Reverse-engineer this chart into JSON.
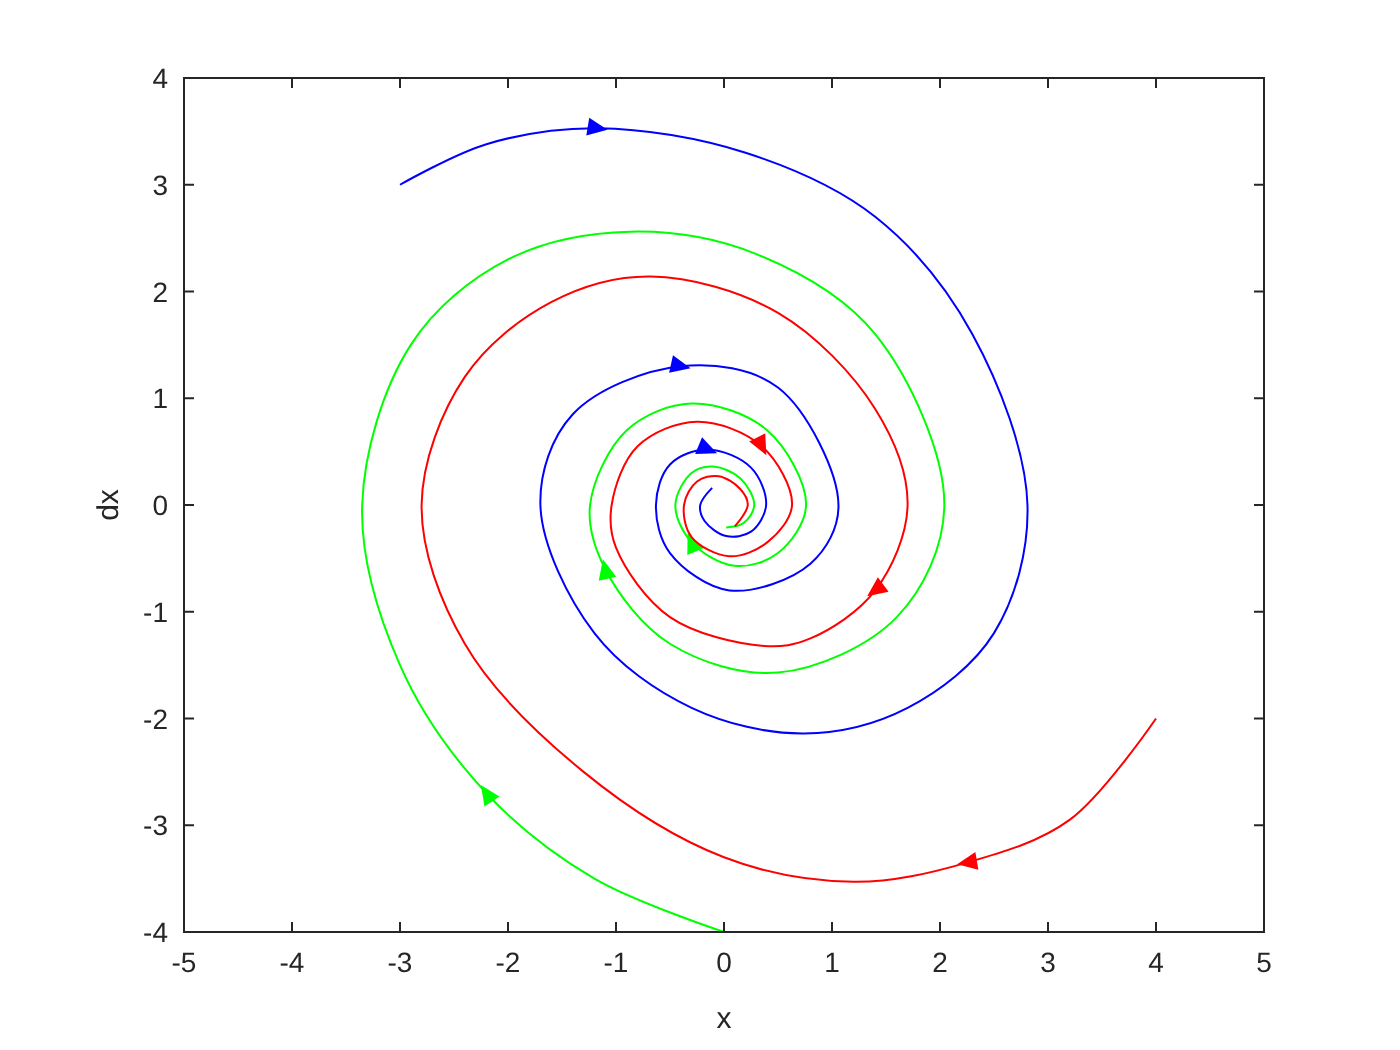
{
  "chart_data": {
    "type": "line",
    "xlabel": "x",
    "ylabel": "dx",
    "xlim": [
      -5,
      5
    ],
    "ylim": [
      -4,
      4
    ],
    "xticks": [
      -5,
      -4,
      -3,
      -2,
      -1,
      0,
      1,
      2,
      3,
      4,
      5
    ],
    "yticks": [
      -4,
      -3,
      -2,
      -1,
      0,
      1,
      2,
      3,
      4
    ],
    "grid": false,
    "series": [
      {
        "color": "#0000ff",
        "x": [
          -3,
          -2.2,
          -1.17,
          0.2,
          1.4,
          2.3,
          2.81,
          2.5,
          1.7,
          0.74,
          -0.3,
          -1.2,
          -1.7,
          -1.4,
          -0.4,
          0.5,
          1.06,
          0.8,
          0.05,
          -0.5,
          -0.63,
          -0.5,
          -0.15,
          0.25,
          0.39,
          0.25,
          0.02,
          -0.18,
          -0.22,
          -0.11
        ],
        "values": [
          3,
          3.38,
          3.53,
          3.3,
          2.7,
          1.6,
          0,
          -1.2,
          -1.9,
          -2.14,
          -1.9,
          -1.2,
          0,
          0.85,
          1.3,
          1.1,
          0,
          -0.55,
          -0.8,
          -0.45,
          0,
          0.38,
          0.52,
          0.35,
          0,
          -0.25,
          -0.29,
          -0.15,
          0,
          0.16
        ]
      },
      {
        "color": "#00ff00",
        "x": [
          0,
          -1.2,
          -2.2,
          -3,
          -3.35,
          -2.9,
          -2,
          -0.87,
          0.3,
          1.4,
          2.04,
          1.6,
          0.5,
          -0.5,
          -1.1,
          -1.24,
          -0.9,
          -0.3,
          0.4,
          0.76,
          0.5,
          0.1,
          -0.3,
          -0.45,
          -0.3,
          -0.1,
          0.15,
          0.28,
          0.18,
          0.02
        ],
        "values": [
          -4,
          -3.5,
          -2.7,
          -1.5,
          0,
          1.5,
          2.3,
          2.56,
          2.35,
          1.6,
          0,
          -1.05,
          -1.57,
          -1.3,
          -0.6,
          0,
          0.7,
          0.95,
          0.7,
          0,
          -0.45,
          -0.57,
          -0.35,
          0,
          0.3,
          0.36,
          0.25,
          0,
          -0.17,
          -0.21
        ]
      },
      {
        "color": "#ff0000",
        "x": [
          4,
          3.2,
          2.25,
          1.2,
          0,
          -1.3,
          -2.4,
          -2.8,
          -2.4,
          -1.6,
          -0.68,
          0.5,
          1.4,
          1.7,
          1.4,
          0.8,
          0.37,
          -0.5,
          -1,
          -1.04,
          -0.8,
          -0.25,
          0.35,
          0.63,
          0.4,
          0.05,
          -0.3,
          -0.37,
          -0.25,
          -0.05,
          0.15,
          0.22,
          0.1
        ],
        "values": [
          -2,
          -2.95,
          -3.35,
          -3.53,
          -3.3,
          -2.5,
          -1.3,
          0,
          1.2,
          1.9,
          2.14,
          1.8,
          0.9,
          0,
          -0.8,
          -1.25,
          -1.32,
          -1.05,
          -0.4,
          0,
          0.55,
          0.78,
          0.55,
          0,
          -0.35,
          -0.48,
          -0.3,
          0,
          0.22,
          0.27,
          0.15,
          0,
          -0.2
        ]
      }
    ]
  }
}
